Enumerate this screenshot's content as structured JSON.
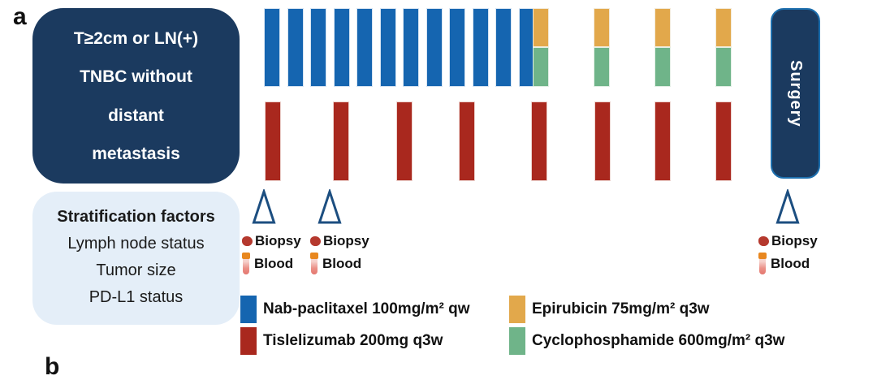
{
  "panel": {
    "label_a": "a",
    "label_b": "b"
  },
  "eligibility_box": {
    "lines": [
      "T≥2cm or LN(+)",
      "TNBC without",
      "distant",
      "metastasis"
    ]
  },
  "stratification_box": {
    "title": "Stratification factors",
    "items": [
      "Lymph node status",
      "Tumor size",
      "PD-L1 status"
    ]
  },
  "surgery_box": {
    "label": "Surgery"
  },
  "annotations": {
    "biopsy_label": "Biopsy",
    "blood_label": "Blood",
    "timepoint_icon": "open-triangle",
    "biopsy_icon": "tissue-blob",
    "blood_icon": "blood-tube"
  },
  "schedule": {
    "nab_paclitaxel_weekly_doses": 12,
    "ec_q3w_cycles": 4,
    "tislelizumab_q3w_doses": 8,
    "biopsy_blood_timepoints": 3
  },
  "legend": [
    {
      "color": "#1565b0",
      "label": "Nab-paclitaxel 100mg/m² qw"
    },
    {
      "color": "#a9281e",
      "label": "Tislelizumab 200mg q3w"
    },
    {
      "color": "#e2a84b",
      "label": "Epirubicin 75mg/m² q3w"
    },
    {
      "color": "#6fb489",
      "label": "Cyclophosphamide 600mg/m² q3w"
    }
  ],
  "colors": {
    "navy": "#1b3a5f",
    "light_panel": "#e4eef8",
    "nab_paclitaxel": "#1565b0",
    "tislelizumab": "#a9281e",
    "epirubicin": "#e2a84b",
    "cyclophosphamide": "#6fb489",
    "triangle_stroke": "#1c4e80"
  }
}
